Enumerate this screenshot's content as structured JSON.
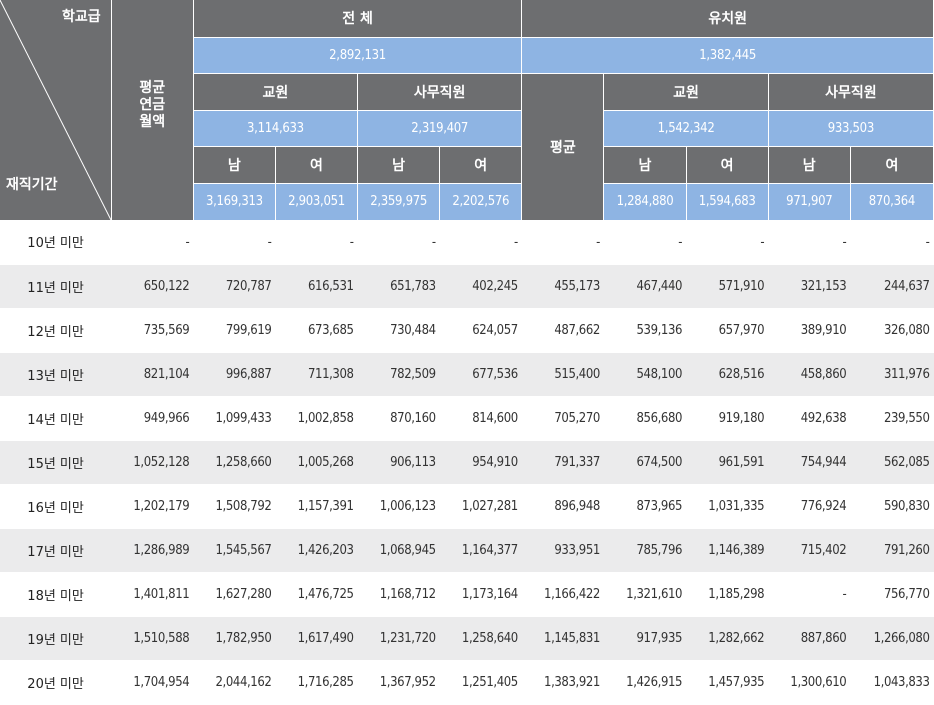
{
  "header": {
    "corner_top": "학교급",
    "corner_bottom": "재직기간",
    "avg_label": "평균 연금 월액",
    "total_group": "전 체",
    "total_value": "2,892,131",
    "kinder_group": "유치원",
    "kinder_value": "1,382,445",
    "teacher": "교원",
    "staff": "사무직원",
    "avg_short": "평균",
    "male": "남",
    "female": "여",
    "total_teacher_value": "3,114,633",
    "total_staff_value": "2,319,407",
    "kinder_teacher_value": "1,542,342",
    "kinder_staff_value": "933,503",
    "total_teacher_male": "3,169,313",
    "total_teacher_female": "2,903,051",
    "total_staff_male": "2,359,975",
    "total_staff_female": "2,202,576",
    "kinder_teacher_male": "1,284,880",
    "kinder_teacher_female": "1,594,683",
    "kinder_staff_male": "971,907",
    "kinder_staff_female": "870,364"
  },
  "rows": [
    {
      "label": "10년 미만",
      "v": [
        "-",
        "-",
        "-",
        "-",
        "-",
        "-",
        "-",
        "-",
        "-",
        "-"
      ]
    },
    {
      "label": "11년 미만",
      "v": [
        "650,122",
        "720,787",
        "616,531",
        "651,783",
        "402,245",
        "455,173",
        "467,440",
        "571,910",
        "321,153",
        "244,637"
      ]
    },
    {
      "label": "12년 미만",
      "v": [
        "735,569",
        "799,619",
        "673,685",
        "730,484",
        "624,057",
        "487,662",
        "539,136",
        "657,970",
        "389,910",
        "326,080"
      ]
    },
    {
      "label": "13년 미만",
      "v": [
        "821,104",
        "996,887",
        "711,308",
        "782,509",
        "677,536",
        "515,400",
        "548,100",
        "628,516",
        "458,860",
        "311,976"
      ]
    },
    {
      "label": "14년 미만",
      "v": [
        "949,966",
        "1,099,433",
        "1,002,858",
        "870,160",
        "814,600",
        "705,270",
        "856,680",
        "919,180",
        "492,638",
        "239,550"
      ]
    },
    {
      "label": "15년 미만",
      "v": [
        "1,052,128",
        "1,258,660",
        "1,005,268",
        "906,113",
        "954,910",
        "791,337",
        "674,500",
        "961,591",
        "754,944",
        "562,085"
      ]
    },
    {
      "label": "16년 미만",
      "v": [
        "1,202,179",
        "1,508,792",
        "1,157,391",
        "1,006,123",
        "1,027,281",
        "896,948",
        "873,965",
        "1,031,335",
        "776,924",
        "590,830"
      ]
    },
    {
      "label": "17년 미만",
      "v": [
        "1,286,989",
        "1,545,567",
        "1,426,203",
        "1,068,945",
        "1,164,377",
        "933,951",
        "785,796",
        "1,146,389",
        "715,402",
        "791,260"
      ]
    },
    {
      "label": "18년 미만",
      "v": [
        "1,401,811",
        "1,627,280",
        "1,476,725",
        "1,168,712",
        "1,173,164",
        "1,166,422",
        "1,321,610",
        "1,185,298",
        "-",
        "756,770"
      ]
    },
    {
      "label": "19년 미만",
      "v": [
        "1,510,588",
        "1,782,950",
        "1,617,490",
        "1,231,720",
        "1,258,640",
        "1,145,831",
        "917,935",
        "1,282,662",
        "887,860",
        "1,266,080"
      ]
    },
    {
      "label": "20년 미만",
      "v": [
        "1,704,954",
        "2,044,162",
        "1,716,285",
        "1,367,952",
        "1,251,405",
        "1,383,921",
        "1,426,915",
        "1,457,935",
        "1,300,610",
        "1,043,833"
      ]
    }
  ]
}
